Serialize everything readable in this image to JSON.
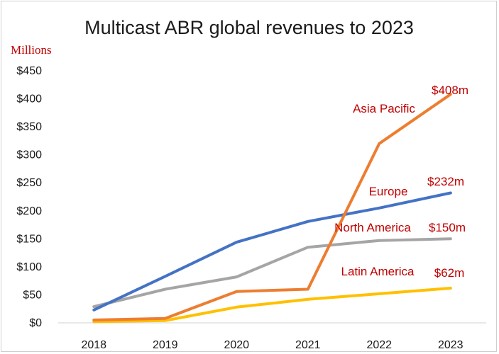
{
  "chart_data": {
    "type": "line",
    "title": "Multicast ABR global revenues to 2023",
    "unit_label": "Millions",
    "xlabel": "",
    "ylabel": "",
    "x": [
      "2018",
      "2019",
      "2020",
      "2021",
      "2022",
      "2023"
    ],
    "ylim": [
      0,
      450
    ],
    "yticks": [
      {
        "value": 0,
        "label": "$0"
      },
      {
        "value": 50,
        "label": "$50"
      },
      {
        "value": 100,
        "label": "$100"
      },
      {
        "value": 150,
        "label": "$150"
      },
      {
        "value": 200,
        "label": "$200"
      },
      {
        "value": 250,
        "label": "$250"
      },
      {
        "value": 300,
        "label": "$300"
      },
      {
        "value": 350,
        "label": "$350"
      },
      {
        "value": 400,
        "label": "$400"
      },
      {
        "value": 450,
        "label": "$450"
      }
    ],
    "grid": false,
    "legend": "none",
    "series": [
      {
        "name": "Asia Pacific",
        "color": "#ed7d31",
        "values": [
          5,
          8,
          56,
          60,
          320,
          408
        ],
        "end_label": "$408m"
      },
      {
        "name": "Europe",
        "color": "#4472c4",
        "values": [
          23,
          83,
          144,
          181,
          205,
          232
        ],
        "end_label": "$232m"
      },
      {
        "name": "North America",
        "color": "#a5a5a5",
        "values": [
          29,
          60,
          82,
          135,
          147,
          150
        ],
        "end_label": "$150m"
      },
      {
        "name": "Latin America",
        "color": "#ffc000",
        "values": [
          2,
          4,
          28,
          42,
          52,
          62
        ],
        "end_label": "$62m"
      }
    ]
  }
}
